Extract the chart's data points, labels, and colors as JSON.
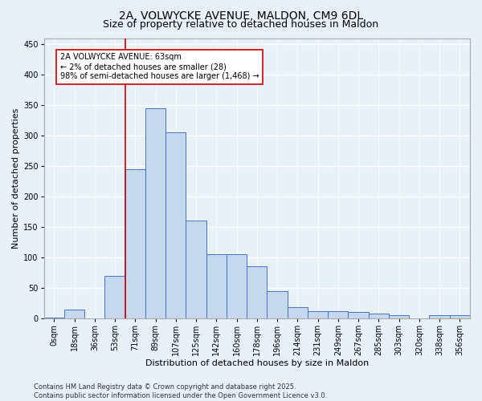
{
  "title_line1": "2A, VOLWYCKE AVENUE, MALDON, CM9 6DL",
  "title_line2": "Size of property relative to detached houses in Maldon",
  "xlabel": "Distribution of detached houses by size in Maldon",
  "ylabel": "Number of detached properties",
  "categories": [
    "0sqm",
    "18sqm",
    "36sqm",
    "53sqm",
    "71sqm",
    "89sqm",
    "107sqm",
    "125sqm",
    "142sqm",
    "160sqm",
    "178sqm",
    "196sqm",
    "214sqm",
    "231sqm",
    "249sqm",
    "267sqm",
    "285sqm",
    "303sqm",
    "320sqm",
    "338sqm",
    "356sqm"
  ],
  "bar_heights": [
    1,
    15,
    0,
    70,
    245,
    345,
    305,
    160,
    105,
    105,
    85,
    45,
    18,
    12,
    12,
    10,
    8,
    5,
    0,
    5,
    5
  ],
  "bar_color": "#c5d8f0",
  "bar_edge_color": "#4472c4",
  "bg_color": "#e8f0f8",
  "grid_color": "#ffffff",
  "vline_x": 3.5,
  "vline_color": "#cc0000",
  "annotation_text": "2A VOLWYCKE AVENUE: 63sqm\n← 2% of detached houses are smaller (28)\n98% of semi-detached houses are larger (1,468) →",
  "annotation_box_color": "#ffffff",
  "annotation_box_edge": "#cc0000",
  "ylim": [
    0,
    460
  ],
  "yticks": [
    0,
    50,
    100,
    150,
    200,
    250,
    300,
    350,
    400,
    450
  ],
  "footer_line1": "Contains HM Land Registry data © Crown copyright and database right 2025.",
  "footer_line2": "Contains public sector information licensed under the Open Government Licence v3.0.",
  "title_fontsize": 10,
  "subtitle_fontsize": 9,
  "axis_label_fontsize": 8,
  "tick_fontsize": 7,
  "annotation_fontsize": 7,
  "footer_fontsize": 6
}
